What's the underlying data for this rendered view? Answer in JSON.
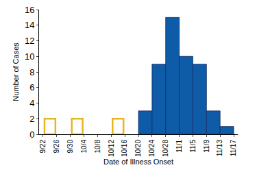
{
  "chart_data": {
    "type": "histogram",
    "x_label": "Date of Illness Onset",
    "y_label": "Number of Cases",
    "bins": [
      "9/22",
      "9/26",
      "9/30",
      "10/4",
      "10/8",
      "10/12",
      "10/16",
      "10/20",
      "10/24",
      "10/28",
      "11/1",
      "11/5",
      "11/9",
      "11/13",
      "11/17"
    ],
    "series": [
      {
        "color": "#e8b420",
        "marker": "outline",
        "values": [
          2,
          0,
          2,
          0,
          0,
          2,
          0,
          0,
          0,
          0,
          0,
          0,
          0,
          0
        ]
      },
      {
        "color": "#0e5ba8",
        "marker": "filled",
        "values": [
          0,
          0,
          0,
          0,
          0,
          0,
          0,
          3,
          9,
          15,
          10,
          9,
          3,
          1
        ]
      }
    ],
    "ylim": [
      0,
      16
    ],
    "yticks": [
      0,
      2,
      4,
      6,
      8,
      10,
      12,
      14,
      16
    ],
    "grid": false,
    "stacked": false
  }
}
